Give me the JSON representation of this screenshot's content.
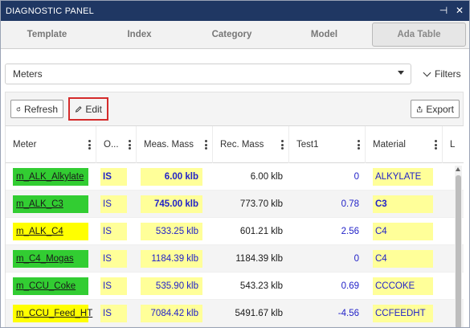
{
  "window": {
    "title": "DIAGNOSTIC PANEL"
  },
  "tabs": [
    {
      "label": "Template"
    },
    {
      "label": "Index"
    },
    {
      "label": "Category"
    },
    {
      "label": "Model"
    },
    {
      "label": "Ada Table",
      "active": true
    }
  ],
  "selector": {
    "value": "Meters",
    "filters_label": "Filters"
  },
  "toolbar": {
    "refresh_label": "Refresh",
    "edit_label": "Edit",
    "export_label": "Export",
    "edit_highlight_color": "#d52b2b"
  },
  "table": {
    "headers": [
      "Meter",
      "O...",
      "Meas. Mass",
      "Rec. Mass",
      "Test1",
      "Material",
      "L"
    ],
    "rows": [
      {
        "meter": "m_ALK_Alkylate",
        "meter_color": "green",
        "o": "IS",
        "meas_mass": "6.00 klb",
        "meas_bold": true,
        "rec_mass": "6.00 klb",
        "test1": "0",
        "material": "ALKYLATE",
        "material_bold": false,
        "o_bold": true
      },
      {
        "meter": "m_ALK_C3",
        "meter_color": "green",
        "o": "IS",
        "meas_mass": "745.00 klb",
        "meas_bold": true,
        "rec_mass": "773.70 klb",
        "test1": "0.78",
        "material": "C3",
        "material_bold": true,
        "o_bold": false
      },
      {
        "meter": "m_ALK_C4",
        "meter_color": "yellow",
        "o": "IS",
        "meas_mass": "533.25 klb",
        "meas_bold": false,
        "rec_mass": "601.21 klb",
        "test1": "2.56",
        "material": "C4",
        "material_bold": false,
        "o_bold": false
      },
      {
        "meter": "m_C4_Mogas",
        "meter_color": "green",
        "o": "IS",
        "meas_mass": "1184.39 klb",
        "meas_bold": false,
        "rec_mass": "1184.39 klb",
        "test1": "0",
        "material": "C4",
        "material_bold": false,
        "o_bold": false
      },
      {
        "meter": "m_CCU_Coke",
        "meter_color": "green",
        "o": "IS",
        "meas_mass": "535.90 klb",
        "meas_bold": false,
        "rec_mass": "543.23 klb",
        "test1": "0.69",
        "material": "CCCOKE",
        "material_bold": false,
        "o_bold": false
      },
      {
        "meter": "m_CCU_Feed_HT",
        "meter_color": "yellow",
        "o": "IS",
        "meas_mass": "7084.42 klb",
        "meas_bold": false,
        "rec_mass": "5491.67 klb",
        "test1": "-4.56",
        "material": "CCFEEDHT",
        "material_bold": false,
        "o_bold": false
      }
    ]
  },
  "colors": {
    "titlebar": "#1f3763",
    "meter_green": "#32cd32",
    "meter_yellow": "#ffff00",
    "cell_yellow": "#ffff99",
    "value_blue": "#2222c8"
  }
}
